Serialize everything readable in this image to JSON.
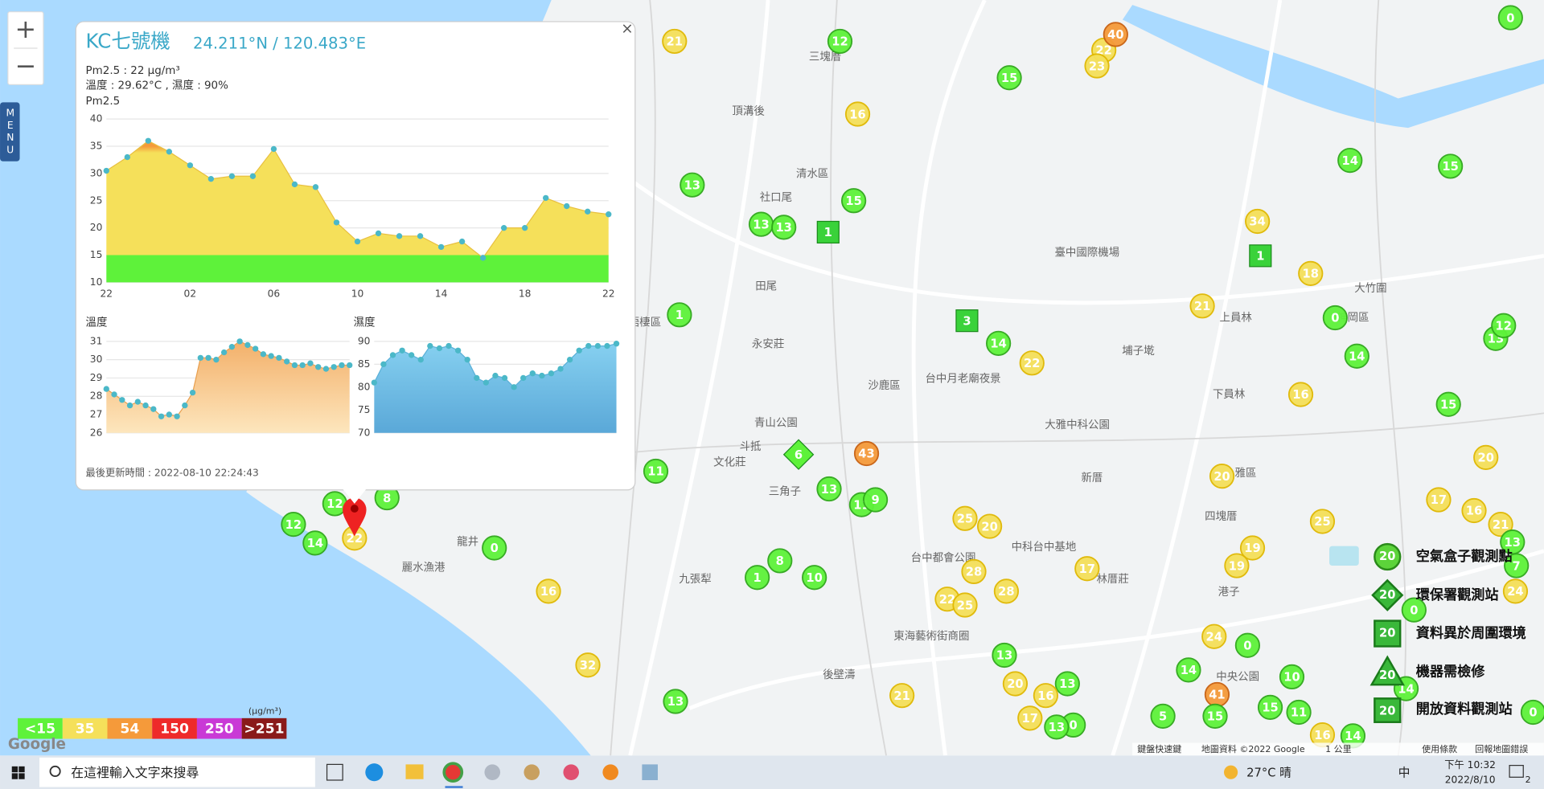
{
  "map": {
    "zoom_in": "+",
    "zoom_out": "−",
    "menu": "MENU",
    "markers": [
      21,
      12,
      15,
      22,
      40,
      23,
      16,
      13,
      15,
      13,
      13,
      14,
      15,
      34,
      18,
      21,
      0,
      14,
      13,
      12,
      14,
      22,
      1,
      16,
      15,
      20,
      43,
      11,
      13,
      11,
      9,
      8,
      12,
      12,
      14,
      0,
      25,
      20,
      20,
      25,
      17,
      16,
      21,
      17,
      19,
      19,
      28,
      28,
      22,
      25,
      8,
      1,
      10,
      16,
      32,
      13,
      13,
      24,
      0,
      14,
      10,
      20,
      13,
      16,
      17,
      41,
      15,
      11,
      15,
      5,
      0,
      13,
      21,
      16,
      14,
      0,
      0,
      24,
      7,
      13,
      14,
      0,
      22
    ],
    "squares": [
      1,
      1,
      3
    ],
    "diamonds": [
      6
    ],
    "places": [
      "三塊厝",
      "頂溝後",
      "清水區",
      "社口尾",
      "田尾",
      "永安莊",
      "沙鹿區",
      "臺中國際機場",
      "埔子墘",
      "台中月老廟夜景",
      "大雅中科公園",
      "新厝",
      "三角子",
      "斗抵",
      "文化莊",
      "龍井",
      "麗水漁港",
      "九張犁",
      "後壁濤",
      "東海藝術街商圈",
      "台中都會公園",
      "神岡區",
      "大竹圍",
      "上員林",
      "下員林",
      "雅區",
      "四塊厝",
      "港子",
      "中央公園",
      "梧棲區",
      "青山公園",
      "林厝莊",
      "中科台中基地"
    ],
    "footer": [
      "鍵盤快速鍵",
      "地圖資料 ©2022 Google",
      "1 公里",
      "使用條款",
      "回報地圖錯誤"
    ],
    "google": "Google"
  },
  "legend": {
    "unit": "(μg/m³)",
    "levels": [
      {
        "value": 15,
        "label": "<15",
        "color": "#5ef23a"
      },
      {
        "value": 35,
        "label": "35",
        "color": "#f5e05a"
      },
      {
        "value": 54,
        "label": "54",
        "color": "#f59a3a"
      },
      {
        "value": 150,
        "label": "150",
        "color": "#ee2a2a"
      },
      {
        "value": 250,
        "label": "250",
        "color": "#c93ad6"
      },
      {
        "value": 251,
        "label": ">251",
        "color": "#8a1a1a"
      }
    ]
  },
  "site_legend": {
    "badge": 20,
    "items": [
      "空氣盒子觀測點",
      "環保署觀測站",
      "資料異於周圍環境",
      "機器需檢修",
      "開放資料觀測站"
    ]
  },
  "popup": {
    "name": "KC七號機",
    "coords": "24.211°N / 120.483°E",
    "close": "×",
    "pm_line": "Pm2.5 : 22 μg/m³",
    "th_line": "溫度 : 29.62°C , 濕度 : 90%",
    "updated": "最後更新時間 : 2022-08-10 22:24:43",
    "pm_chart": {
      "title": "Pm2.5",
      "categories": [
        "22",
        null,
        null,
        null,
        "02",
        null,
        null,
        null,
        "06",
        null,
        null,
        null,
        "10",
        null,
        null,
        null,
        "14",
        null,
        null,
        null,
        "18",
        null,
        null,
        null,
        "22"
      ],
      "values": [
        30.5,
        33,
        36,
        34,
        31.5,
        29,
        29.5,
        29.5,
        34.5,
        28,
        27.5,
        21,
        17.5,
        19,
        18.5,
        18.5,
        16.5,
        17.5,
        14.5,
        20,
        20,
        25.5,
        24,
        23,
        22.5
      ],
      "ylim": [
        10,
        40
      ],
      "yticks": [
        10,
        15,
        20,
        25,
        30,
        35,
        40
      ]
    },
    "temp_chart": {
      "title": "溫度",
      "values": [
        28.4,
        28.1,
        27.8,
        27.5,
        27.7,
        27.5,
        27.3,
        26.9,
        27.0,
        26.9,
        27.5,
        28.2,
        30.1,
        30.1,
        30.0,
        30.4,
        30.7,
        31.0,
        30.8,
        30.6,
        30.3,
        30.2,
        30.1,
        29.9,
        29.7,
        29.7,
        29.8,
        29.6,
        29.5,
        29.6,
        29.7,
        29.7
      ],
      "ylim": [
        26,
        31
      ],
      "yticks": [
        26,
        27,
        28,
        29,
        30,
        31
      ]
    },
    "hum_chart": {
      "title": "濕度",
      "values": [
        81,
        85,
        87,
        88,
        87,
        86,
        89,
        88.5,
        89,
        88,
        86,
        82,
        81,
        82.5,
        82,
        80,
        82,
        83,
        82.5,
        83,
        84,
        86,
        88,
        89,
        89,
        89,
        89.5
      ],
      "ylim": [
        70,
        90
      ],
      "yticks": [
        70,
        75,
        80,
        85,
        90
      ]
    }
  },
  "taskbar": {
    "search": "在這裡輸入文字來搜尋",
    "weather": "27°C 晴",
    "ime": "中",
    "time": "下午 10:32",
    "date": "2022/8/10",
    "notify": "2"
  }
}
